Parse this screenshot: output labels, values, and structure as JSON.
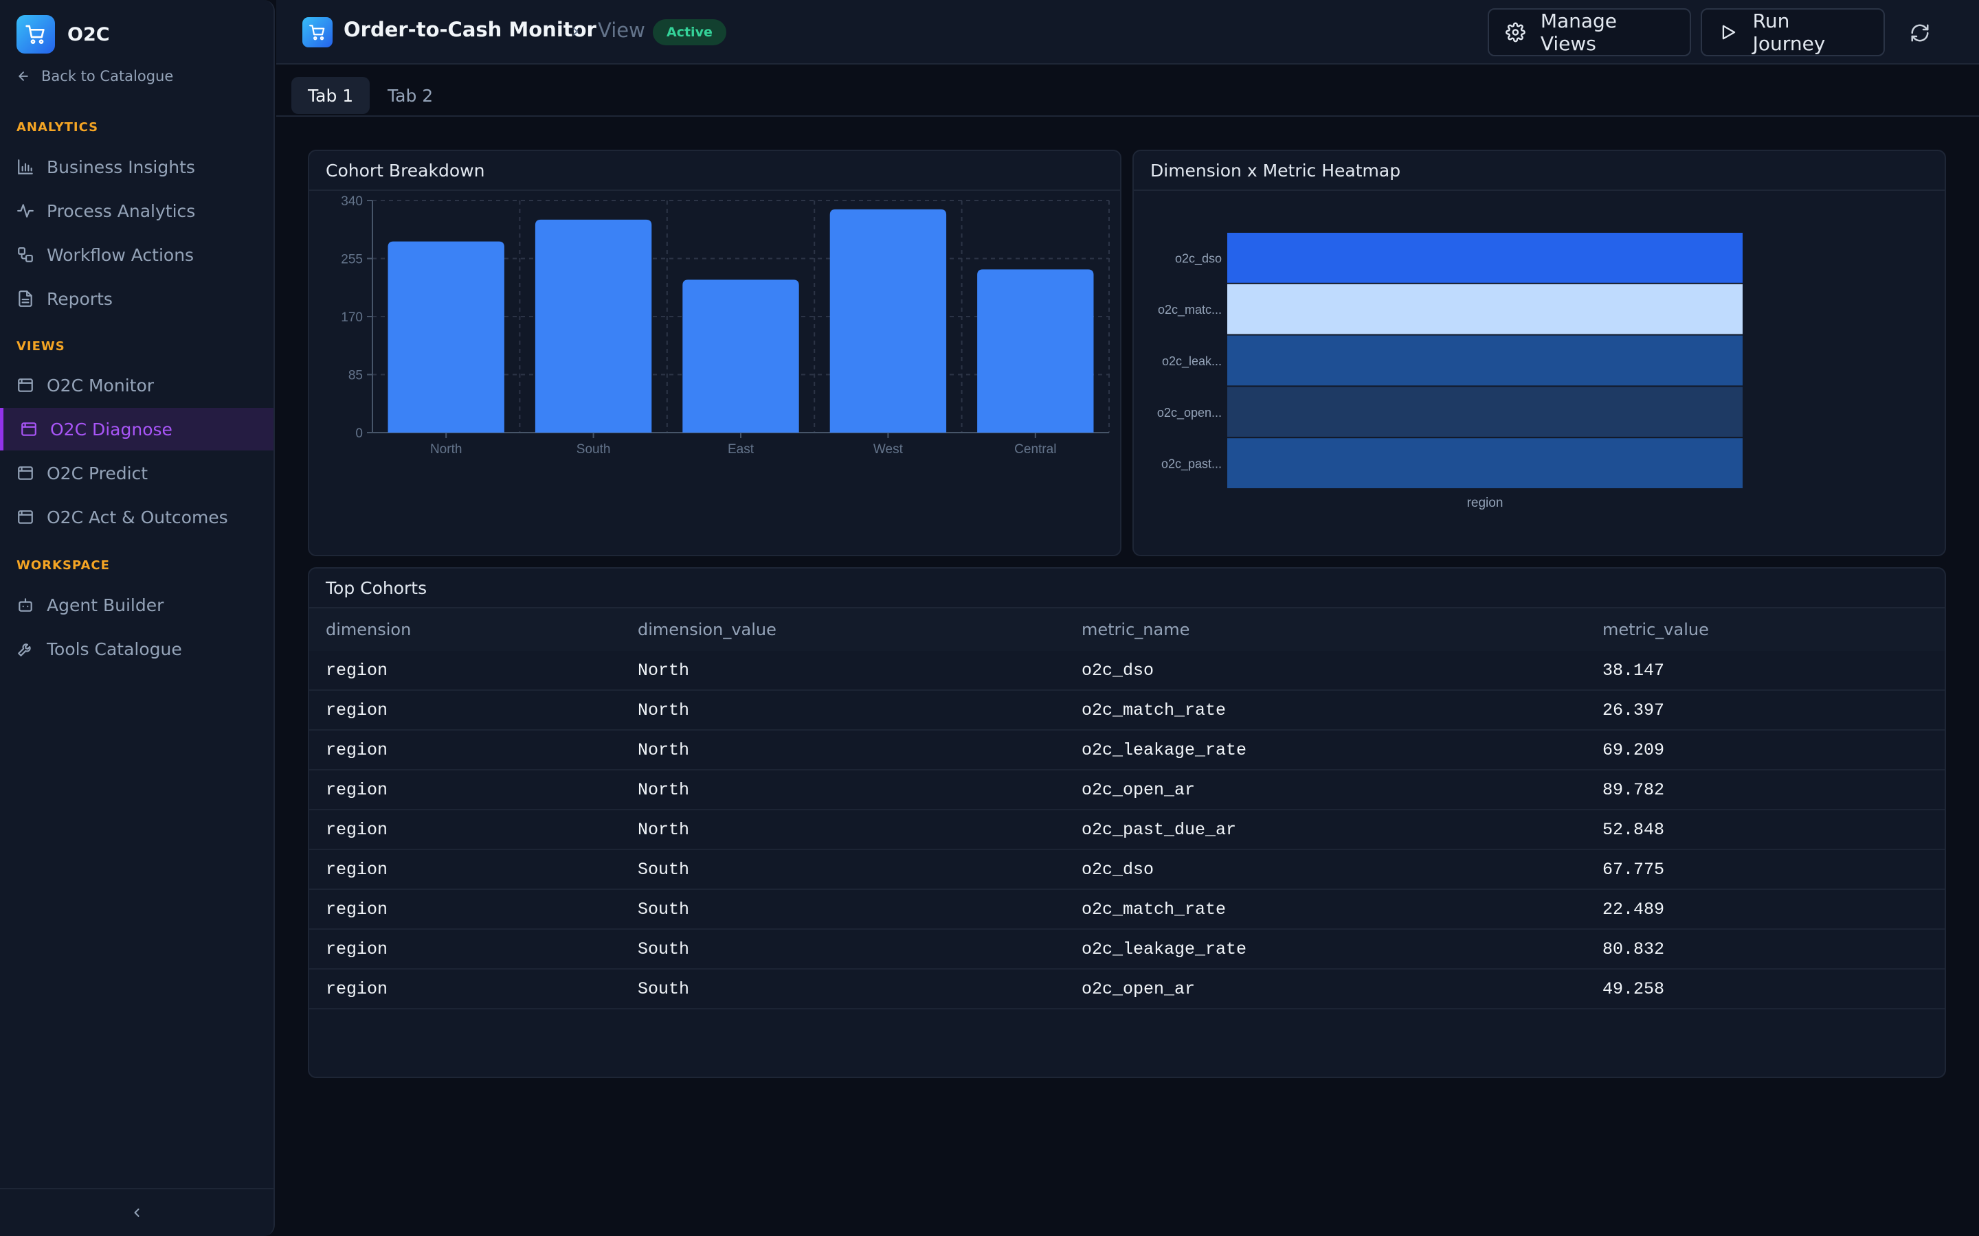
{
  "sidebar": {
    "brand": "O2C",
    "back_label": "Back to Catalogue",
    "sections": [
      {
        "label": "ANALYTICS",
        "items": [
          {
            "label": "Business Insights",
            "icon": "bar-chart-icon"
          },
          {
            "label": "Process Analytics",
            "icon": "activity-icon"
          },
          {
            "label": "Workflow Actions",
            "icon": "workflow-icon"
          },
          {
            "label": "Reports",
            "icon": "report-icon"
          }
        ]
      },
      {
        "label": "VIEWS",
        "items": [
          {
            "label": "O2C Monitor",
            "icon": "window-icon"
          },
          {
            "label": "O2C Diagnose",
            "icon": "window-icon",
            "active": true
          },
          {
            "label": "O2C Predict",
            "icon": "window-icon"
          },
          {
            "label": "O2C Act & Outcomes",
            "icon": "window-icon"
          }
        ]
      },
      {
        "label": "WORKSPACE",
        "items": [
          {
            "label": "Agent Builder",
            "icon": "bot-icon"
          },
          {
            "label": "Tools Catalogue",
            "icon": "wrench-icon"
          }
        ]
      }
    ]
  },
  "header": {
    "title": "Order-to-Cash Monitor",
    "view_label": "View",
    "status": "Active",
    "manage_views_label": "Manage Views",
    "run_journey_label": "Run Journey"
  },
  "tabs": [
    {
      "label": "Tab 1",
      "active": true
    },
    {
      "label": "Tab 2",
      "active": false
    }
  ],
  "bar_card": {
    "title": "Cohort Breakdown"
  },
  "heatmap_card": {
    "title": "Dimension x Metric Heatmap"
  },
  "table": {
    "title": "Top Cohorts",
    "columns": [
      "dimension",
      "dimension_value",
      "metric_name",
      "metric_value"
    ],
    "rows": [
      [
        "region",
        "North",
        "o2c_dso",
        "38.147"
      ],
      [
        "region",
        "North",
        "o2c_match_rate",
        "26.397"
      ],
      [
        "region",
        "North",
        "o2c_leakage_rate",
        "69.209"
      ],
      [
        "region",
        "North",
        "o2c_open_ar",
        "89.782"
      ],
      [
        "region",
        "North",
        "o2c_past_due_ar",
        "52.848"
      ],
      [
        "region",
        "South",
        "o2c_dso",
        "67.775"
      ],
      [
        "region",
        "South",
        "o2c_match_rate",
        "22.489"
      ],
      [
        "region",
        "South",
        "o2c_leakage_rate",
        "80.832"
      ],
      [
        "region",
        "South",
        "o2c_open_ar",
        "49.258"
      ]
    ]
  },
  "colors": {
    "accent": "#9333ea",
    "bar": "#3b82f6",
    "status_green": "#34d399",
    "section_label": "#f5a524"
  },
  "chart_data": [
    {
      "type": "bar",
      "title": "Cohort Breakdown",
      "categories": [
        "North",
        "South",
        "East",
        "West",
        "Central"
      ],
      "values": [
        280,
        312,
        224,
        327,
        239
      ],
      "ylim": [
        0,
        340
      ],
      "yticks": [
        0,
        85,
        170,
        255,
        340
      ],
      "grid": true,
      "color": "#3b82f6"
    },
    {
      "type": "heatmap",
      "title": "Dimension x Metric Heatmap",
      "xlabel": "region",
      "rows": [
        "o2c_dso",
        "o2c_matc...",
        "o2c_leak...",
        "o2c_open...",
        "o2c_past..."
      ],
      "colors": [
        "#2563eb",
        "#bfdbfe",
        "#1e4f94",
        "#1e3a64",
        "#1e4f94"
      ]
    }
  ]
}
